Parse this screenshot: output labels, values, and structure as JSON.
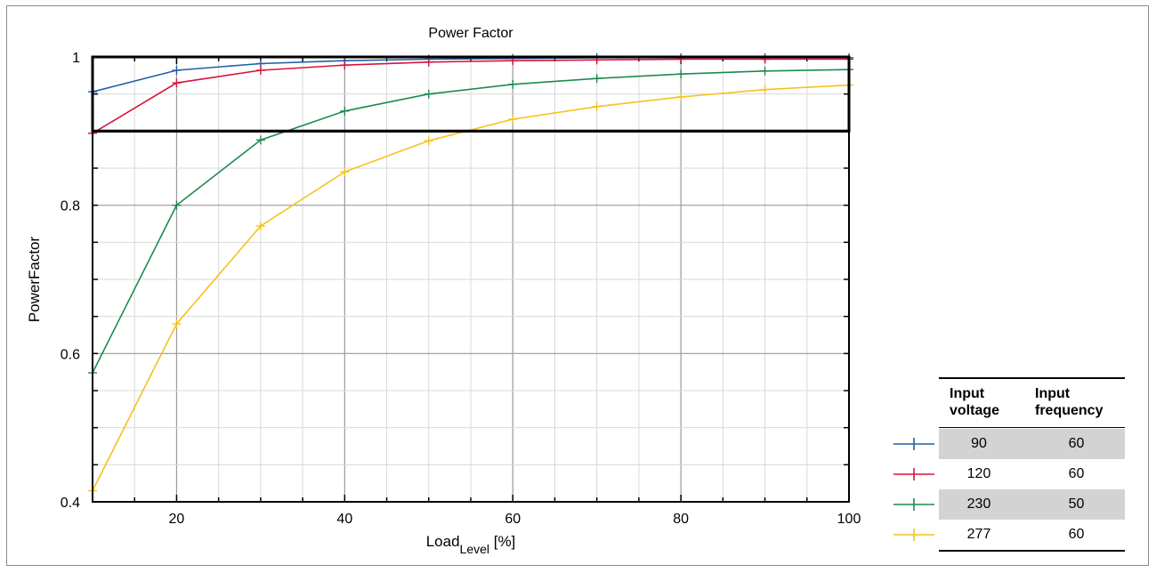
{
  "chart_data": {
    "type": "line",
    "title": "Power Factor",
    "xlabel_main": "Load",
    "xlabel_sub": "Level",
    "xlabel_unit": " [%]",
    "ylabel": "PowerFactor",
    "xlim": [
      10,
      100
    ],
    "ylim": [
      0.4,
      1
    ],
    "x_ticks": [
      20,
      40,
      60,
      80,
      100
    ],
    "y_ticks": [
      0.4,
      0.6,
      0.8,
      1
    ],
    "y_tick_labels": [
      "0.4",
      "0.6",
      "0.8",
      "1"
    ],
    "grid": true,
    "reference_line_y": 0.9,
    "x": [
      10,
      20,
      30,
      40,
      50,
      60,
      70,
      80,
      90,
      100
    ],
    "series": [
      {
        "color": "#1f5fa8",
        "values": [
          0.953,
          0.982,
          0.991,
          0.995,
          0.997,
          0.998,
          0.999,
          0.999,
          0.999,
          0.999
        ]
      },
      {
        "color": "#d8143a",
        "values": [
          0.897,
          0.965,
          0.982,
          0.989,
          0.993,
          0.995,
          0.996,
          0.997,
          0.997,
          0.997
        ]
      },
      {
        "color": "#1e8a50",
        "values": [
          0.574,
          0.8,
          0.888,
          0.927,
          0.95,
          0.963,
          0.971,
          0.977,
          0.981,
          0.983
        ]
      },
      {
        "color": "#f5c21b",
        "values": [
          0.415,
          0.64,
          0.772,
          0.845,
          0.887,
          0.916,
          0.933,
          0.946,
          0.956,
          0.962
        ]
      }
    ]
  },
  "legend_table": {
    "header_voltage": "Input\nvoltage",
    "header_frequency": "Input\nfrequency",
    "rows": [
      {
        "voltage": "90",
        "frequency": "60"
      },
      {
        "voltage": "120",
        "frequency": "60"
      },
      {
        "voltage": "230",
        "frequency": "50"
      },
      {
        "voltage": "277",
        "frequency": "60"
      }
    ]
  }
}
